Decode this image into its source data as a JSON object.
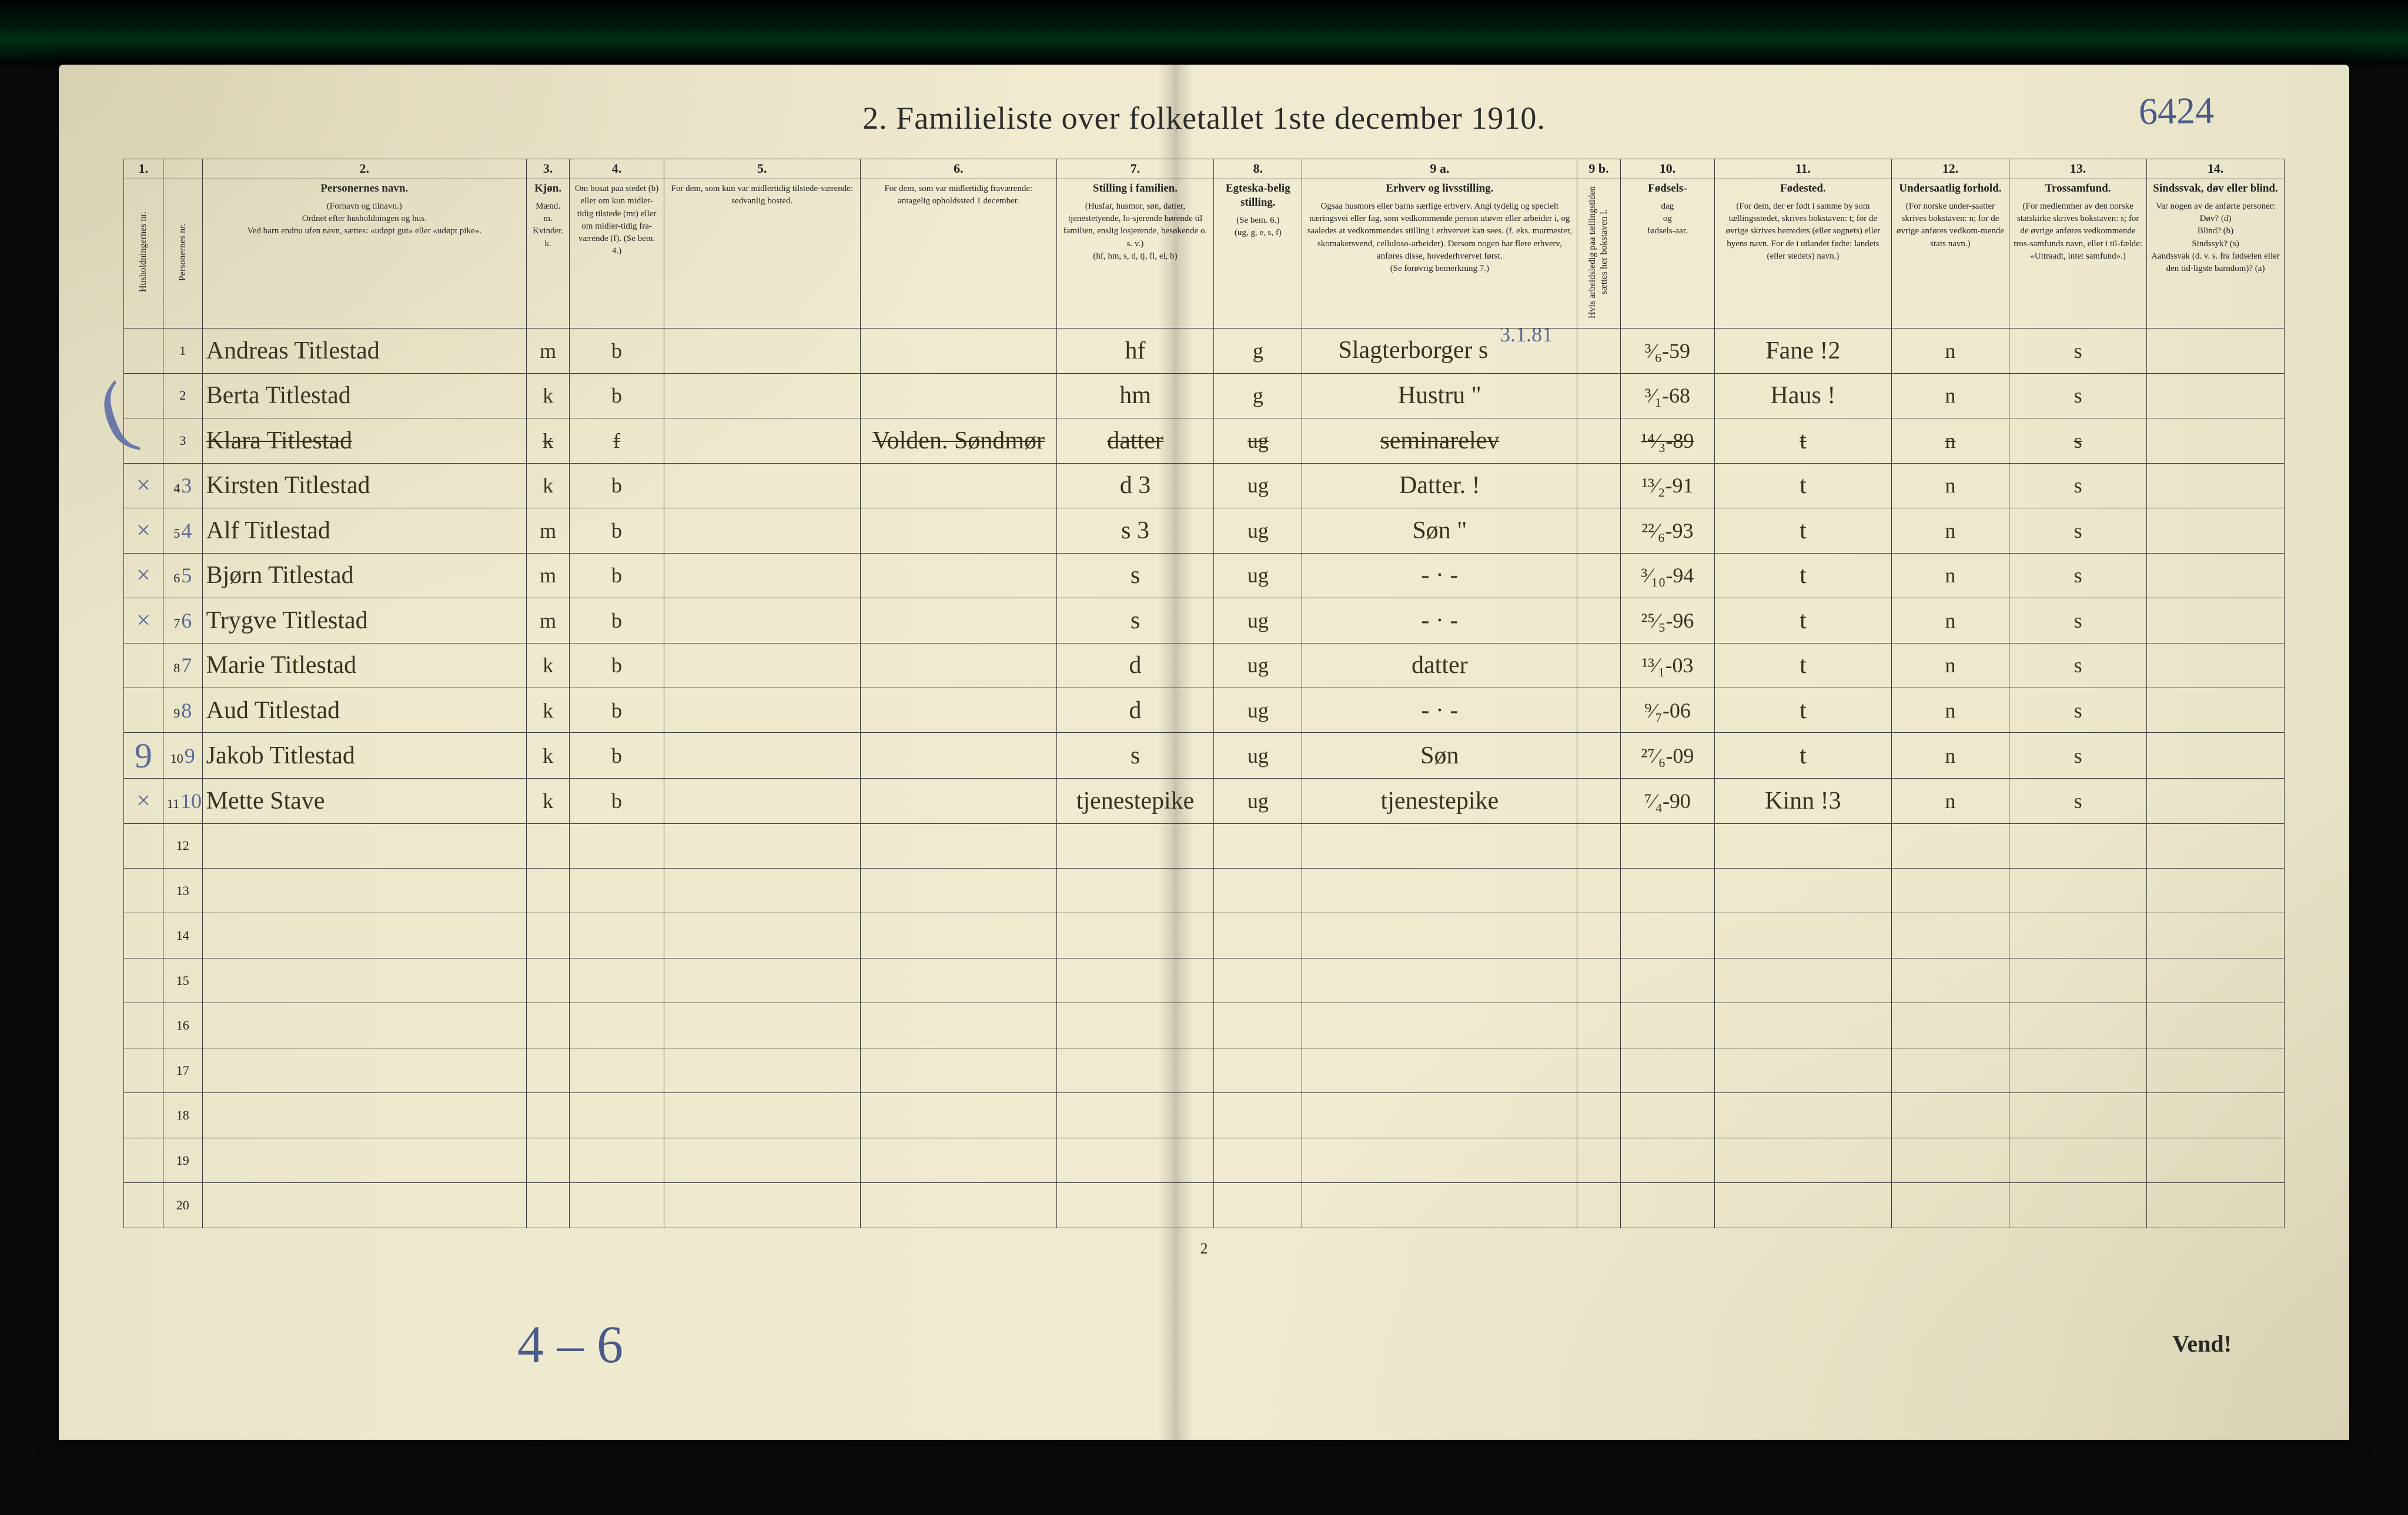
{
  "document": {
    "title": "2.  Familieliste over folketallet 1ste december 1910.",
    "top_handwritten": "6424",
    "page_footer_number": "2",
    "bottom_handwritten": "4 – 6",
    "vend_label": "Vend!"
  },
  "table": {
    "col_widths_pct": [
      2.0,
      2.0,
      16.5,
      2.2,
      4.8,
      10.0,
      10.0,
      8.0,
      4.5,
      14.0,
      2.2,
      4.8,
      9.0,
      6.0,
      7.0,
      7.0
    ],
    "colnums": [
      "1.",
      "",
      "2.",
      "3.",
      "4.",
      "5.",
      "6.",
      "7.",
      "8.",
      "9 a.",
      "9 b.",
      "10.",
      "11.",
      "12.",
      "13.",
      "14."
    ],
    "headers": [
      {
        "title": "",
        "body": "Husholdningernes nr.",
        "vertical": true
      },
      {
        "title": "",
        "body": "Personernes nr.",
        "vertical": true
      },
      {
        "title": "Personernes navn.",
        "body": "(Fornavn og tilnavn.)\nOrdnet efter husholdningen og hus.\nVed barn endnu ufen navn, sættes: «udøpt gut» eller «udøpt pike»."
      },
      {
        "title": "Kjøn.",
        "body": "Mænd. m.  Kvinder. k."
      },
      {
        "title": "",
        "body": "Om bosat paa stedet (b) eller om kun midler-tidig tilstede (mt) eller om midler-tidig fra-værende (f). (Se bem. 4.)"
      },
      {
        "title": "",
        "body": "For dem, som kun var midlertidig tilstede-værende:\nsedvanlig bosted."
      },
      {
        "title": "",
        "body": "For dem, som var midlertidig fraværende:\nantagelig opholdssted 1 december."
      },
      {
        "title": "Stilling i familien.",
        "body": "(Husfar, husmor, søn, datter, tjenestetyende, lo-sjerende hørende til familien, enslig losjerende, besøkende o. s. v.)\n(hf, hm, s, d, tj, fl, el, b)"
      },
      {
        "title": "Egteska-belig stilling.",
        "body": "(Se bem. 6.)\n(ug, g, e, s, f)"
      },
      {
        "title": "Erhverv og livsstilling.",
        "body": "Ogsaa husmors eller barns særlige erhverv. Angi tydelig og specielt næringsvei eller fag, som vedkommende person utøver eller arbeider i, og saaledes at vedkommendes stilling i erhvervet kan sees. (f. eks. murmester, skomakersvend, celluloso-arbeider). Dersom nogen har flere erhverv, anføres disse, hovederhvervet først.\n(Se forøvrig bemerkning 7.)"
      },
      {
        "title": "",
        "body": "Hvis arbeidsledig paa tællingstiden sættes her bokstaven l.",
        "vertical": true
      },
      {
        "title": "Fødsels-",
        "body": "dag\nog\nfødsels-aar."
      },
      {
        "title": "Fødested.",
        "body": "(For dem, der er født i samme by som tællingsstedet, skrives bokstaven: t; for de øvrige skrives herredets (eller sognets) eller byens navn. For de i utlandet fødte: landets (eller stedets) navn.)"
      },
      {
        "title": "Undersaatlig forhold.",
        "body": "(For norske under-saatter skrives bokstaven: n; for de øvrige anføres vedkom-mende stats navn.)"
      },
      {
        "title": "Trossamfund.",
        "body": "(For medlemmer av den norske statskirke skrives bokstaven: s; for de øvrige anføres vedkommende tros-samfunds navn, eller i til-fælde: «Uttraadt, intet samfund».)"
      },
      {
        "title": "Sindssvak, døv eller blind.",
        "body": "Var nogen av de anførte personer:\nDøv?      (d)\nBlind?    (b)\nSindssyk? (s)\nAandssvak (d. v. s. fra fødselen eller den tid-ligste barndom)? (a)"
      }
    ],
    "rows": [
      {
        "nr": "1",
        "name": "Andreas Titlestad",
        "sex": "m",
        "res": "b",
        "col5": "",
        "col6": "",
        "fam": "hf",
        "mar": "g",
        "occ": "Slagterborger s",
        "col9b": "",
        "birth": "³⁄₆-59",
        "place": "Fane !2",
        "nat": "n",
        "rel": "s",
        "col14": "",
        "annot_right": "3.1.81",
        "struck": false
      },
      {
        "nr": "2",
        "name": "Berta Titlestad",
        "sex": "k",
        "res": "b",
        "col5": "",
        "col6": "",
        "fam": "hm",
        "mar": "g",
        "occ": "Hustru        \"",
        "col9b": "",
        "birth": "³⁄₁-68",
        "place": "Haus !",
        "nat": "n",
        "rel": "s",
        "col14": "",
        "struck": false
      },
      {
        "nr": "3",
        "name": "Klara Titlestad",
        "sex": "k",
        "res": "f",
        "col5": "",
        "col6": "Volden. Søndmør",
        "fam": "datter",
        "mar": "ug",
        "occ": "seminarelev",
        "col9b": "",
        "birth": "¹⁴⁄₃-89",
        "place": "t",
        "nat": "n",
        "rel": "s",
        "col14": "",
        "struck": true
      },
      {
        "nr": "4",
        "name": "Kirsten Titlestad",
        "sex": "k",
        "res": "b",
        "col5": "",
        "col6": "",
        "fam": "d    3",
        "mar": "ug",
        "occ": "Datter.       !",
        "col9b": "",
        "birth": "¹³⁄₂-91",
        "place": "t",
        "nat": "n",
        "rel": "s",
        "col14": "",
        "left_mark": "×",
        "blue_nr": "3"
      },
      {
        "nr": "5",
        "name": "Alf Titlestad",
        "sex": "m",
        "res": "b",
        "col5": "",
        "col6": "",
        "fam": "s    3",
        "mar": "ug",
        "occ": "Søn           \"",
        "col9b": "",
        "birth": "²²⁄₆-93",
        "place": "t",
        "nat": "n",
        "rel": "s",
        "col14": "",
        "left_mark": "×",
        "blue_nr": "4"
      },
      {
        "nr": "6",
        "name": "Bjørn Titlestad",
        "sex": "m",
        "res": "b",
        "col5": "",
        "col6": "",
        "fam": "s",
        "mar": "ug",
        "occ": "- · -",
        "col9b": "",
        "birth": "³⁄₁₀-94",
        "place": "t",
        "nat": "n",
        "rel": "s",
        "col14": "",
        "left_mark": "×",
        "blue_nr": "5"
      },
      {
        "nr": "7",
        "name": "Trygve Titlestad",
        "sex": "m",
        "res": "b",
        "col5": "",
        "col6": "",
        "fam": "s",
        "mar": "ug",
        "occ": "- · -",
        "col9b": "",
        "birth": "²⁵⁄₅-96",
        "place": "t",
        "nat": "n",
        "rel": "s",
        "col14": "",
        "left_mark": "×",
        "blue_nr": "6"
      },
      {
        "nr": "8",
        "name": "Marie Titlestad",
        "sex": "k",
        "res": "b",
        "col5": "",
        "col6": "",
        "fam": "d",
        "mar": "ug",
        "occ": "datter",
        "col9b": "",
        "birth": "¹³⁄₁-03",
        "place": "t",
        "nat": "n",
        "rel": "s",
        "col14": "",
        "blue_nr": "7"
      },
      {
        "nr": "9",
        "name": "Aud Titlestad",
        "sex": "k",
        "res": "b",
        "col5": "",
        "col6": "",
        "fam": "d",
        "mar": "ug",
        "occ": "- · -",
        "col9b": "",
        "birth": "⁹⁄₇-06",
        "place": "t",
        "nat": "n",
        "rel": "s",
        "col14": "",
        "blue_nr": "8"
      },
      {
        "nr": "10",
        "name": "Jakob Titlestad",
        "sex": "k",
        "res": "b",
        "col5": "",
        "col6": "",
        "fam": "s",
        "mar": "ug",
        "occ": "Søn",
        "col9b": "",
        "birth": "²⁷⁄₆-09",
        "place": "t",
        "nat": "n",
        "rel": "s",
        "col14": "",
        "left_mark": "",
        "blue_nr": "9",
        "big_blue": "9"
      },
      {
        "nr": "11",
        "name": "Mette Stave",
        "sex": "k",
        "res": "b",
        "col5": "",
        "col6": "",
        "fam": "tjenestepike",
        "mar": "ug",
        "occ": "tjenestepike",
        "col9b": "",
        "birth": "⁷⁄₄-90",
        "place": "Kinn !3",
        "nat": "n",
        "rel": "s",
        "col14": "",
        "left_mark": "×",
        "blue_nr": "10"
      },
      {
        "nr": "12"
      },
      {
        "nr": "13"
      },
      {
        "nr": "14"
      },
      {
        "nr": "15"
      },
      {
        "nr": "16"
      },
      {
        "nr": "17"
      },
      {
        "nr": "18"
      },
      {
        "nr": "19"
      },
      {
        "nr": "20"
      }
    ]
  }
}
